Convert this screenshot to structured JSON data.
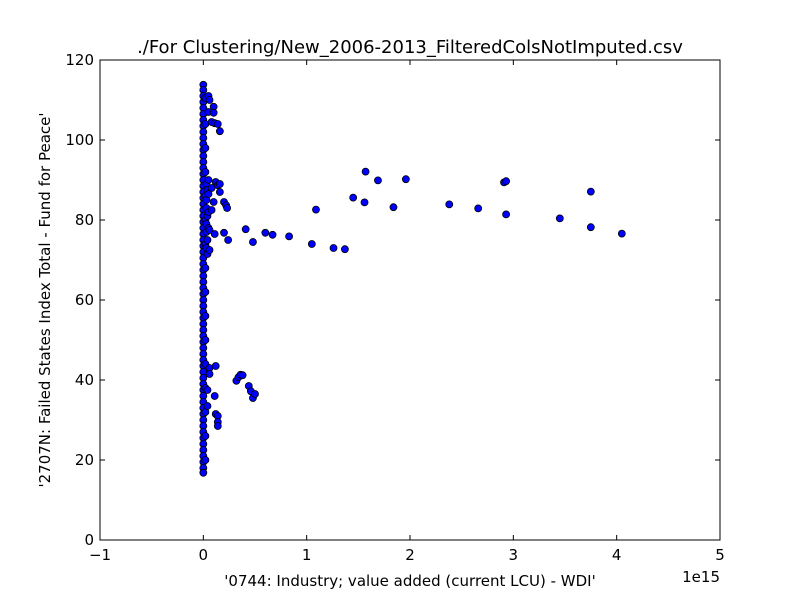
{
  "chart_data": {
    "type": "scatter",
    "title": "./For Clustering/New_2006-2013_FilteredColsNotImputed.csv",
    "xlabel": "'0744: Industry; value added  (current LCU) - WDI'",
    "ylabel": "'2707N: Failed States Index Total - Fund for Peace'",
    "x_offset_label": "1e15",
    "xlim": [
      -1,
      5
    ],
    "ylim": [
      0,
      120
    ],
    "x_ticks": [
      -1,
      0,
      1,
      2,
      3,
      4,
      5
    ],
    "x_tick_labels": [
      "−1",
      "0",
      "1",
      "2",
      "3",
      "4",
      "5"
    ],
    "y_ticks": [
      0,
      20,
      40,
      60,
      80,
      100,
      120
    ],
    "y_tick_labels": [
      "0",
      "20",
      "40",
      "60",
      "80",
      "100",
      "120"
    ],
    "grid": false,
    "marker_color": "#0000ff",
    "marker_edge_color": "#000000",
    "x_scale_note": "x values are in units of 1e15",
    "points": [
      [
        0.0,
        113.8
      ],
      [
        0.0,
        112.5
      ],
      [
        0.0,
        111.0
      ],
      [
        0.0,
        109.5
      ],
      [
        0.0,
        108.0
      ],
      [
        0.0,
        106.5
      ],
      [
        0.0,
        105.0
      ],
      [
        0.0,
        103.5
      ],
      [
        0.0,
        102.0
      ],
      [
        0.0,
        100.5
      ],
      [
        0.0,
        99.0
      ],
      [
        0.0,
        97.5
      ],
      [
        0.0,
        96.0
      ],
      [
        0.0,
        94.5
      ],
      [
        0.0,
        93.0
      ],
      [
        0.0,
        91.5
      ],
      [
        0.0,
        90.0
      ],
      [
        0.0,
        88.5
      ],
      [
        0.0,
        87.0
      ],
      [
        0.0,
        85.5
      ],
      [
        0.0,
        84.0
      ],
      [
        0.0,
        82.5
      ],
      [
        0.0,
        81.0
      ],
      [
        0.0,
        79.5
      ],
      [
        0.0,
        78.0
      ],
      [
        0.0,
        76.5
      ],
      [
        0.0,
        75.0
      ],
      [
        0.0,
        73.5
      ],
      [
        0.0,
        72.0
      ],
      [
        0.0,
        70.5
      ],
      [
        0.0,
        69.0
      ],
      [
        0.0,
        67.5
      ],
      [
        0.0,
        66.0
      ],
      [
        0.0,
        64.5
      ],
      [
        0.0,
        63.0
      ],
      [
        0.0,
        61.5
      ],
      [
        0.0,
        60.0
      ],
      [
        0.0,
        58.5
      ],
      [
        0.0,
        57.0
      ],
      [
        0.0,
        55.5
      ],
      [
        0.0,
        54.0
      ],
      [
        0.0,
        52.5
      ],
      [
        0.0,
        51.0
      ],
      [
        0.0,
        49.5
      ],
      [
        0.0,
        48.0
      ],
      [
        0.0,
        46.5
      ],
      [
        0.0,
        45.0
      ],
      [
        0.0,
        43.5
      ],
      [
        0.0,
        42.0
      ],
      [
        0.0,
        40.5
      ],
      [
        0.0,
        39.0
      ],
      [
        0.0,
        37.5
      ],
      [
        0.0,
        36.0
      ],
      [
        0.0,
        34.5
      ],
      [
        0.0,
        33.0
      ],
      [
        0.0,
        31.5
      ],
      [
        0.0,
        30.0
      ],
      [
        0.0,
        28.5
      ],
      [
        0.0,
        27.0
      ],
      [
        0.0,
        25.5
      ],
      [
        0.0,
        24.0
      ],
      [
        0.0,
        22.5
      ],
      [
        0.0,
        21.0
      ],
      [
        0.0,
        19.5
      ],
      [
        0.0,
        18.0
      ],
      [
        0.0,
        16.8
      ],
      [
        0.02,
        110.5
      ],
      [
        0.02,
        104.0
      ],
      [
        0.02,
        98.0
      ],
      [
        0.02,
        92.0
      ],
      [
        0.02,
        86.0
      ],
      [
        0.02,
        80.0
      ],
      [
        0.02,
        74.0
      ],
      [
        0.02,
        68.0
      ],
      [
        0.02,
        62.0
      ],
      [
        0.02,
        56.0
      ],
      [
        0.02,
        50.0
      ],
      [
        0.02,
        44.0
      ],
      [
        0.02,
        38.0
      ],
      [
        0.02,
        32.0
      ],
      [
        0.02,
        26.0
      ],
      [
        0.02,
        20.0
      ],
      [
        0.03,
        89.0
      ],
      [
        0.03,
        85.0
      ],
      [
        0.03,
        83.0
      ],
      [
        0.03,
        79.0
      ],
      [
        0.03,
        77.0
      ],
      [
        0.03,
        73.0
      ],
      [
        0.04,
        87.5
      ],
      [
        0.04,
        81.0
      ],
      [
        0.04,
        75.0
      ],
      [
        0.04,
        71.5
      ],
      [
        0.04,
        37.5
      ],
      [
        0.04,
        33.5
      ],
      [
        0.05,
        111.0
      ],
      [
        0.05,
        107.0
      ],
      [
        0.05,
        90.0
      ],
      [
        0.05,
        86.5
      ],
      [
        0.05,
        82.0
      ],
      [
        0.05,
        78.0
      ],
      [
        0.06,
        110.0
      ],
      [
        0.06,
        77.5
      ],
      [
        0.06,
        72.5
      ],
      [
        0.06,
        43.0
      ],
      [
        0.06,
        41.5
      ],
      [
        0.08,
        104.5
      ],
      [
        0.08,
        88.0
      ],
      [
        0.08,
        82.5
      ],
      [
        0.1,
        108.3
      ],
      [
        0.1,
        106.8
      ],
      [
        0.1,
        84.5
      ],
      [
        0.11,
        104.2
      ],
      [
        0.11,
        76.5
      ],
      [
        0.11,
        36.0
      ],
      [
        0.12,
        89.5
      ],
      [
        0.12,
        43.5
      ],
      [
        0.12,
        31.5
      ],
      [
        0.14,
        104.0
      ],
      [
        0.14,
        88.7
      ],
      [
        0.14,
        31.0
      ],
      [
        0.14,
        29.5
      ],
      [
        0.14,
        28.5
      ],
      [
        0.16,
        102.2
      ],
      [
        0.16,
        89.0
      ],
      [
        0.16,
        87.0
      ],
      [
        0.2,
        84.5
      ],
      [
        0.2,
        76.8
      ],
      [
        0.22,
        83.7
      ],
      [
        0.23,
        83.0
      ],
      [
        0.24,
        75.0
      ],
      [
        0.32,
        39.8
      ],
      [
        0.34,
        40.7
      ],
      [
        0.36,
        41.3
      ],
      [
        0.38,
        41.2
      ],
      [
        0.41,
        77.7
      ],
      [
        0.44,
        38.5
      ],
      [
        0.46,
        37.2
      ],
      [
        0.48,
        74.5
      ],
      [
        0.48,
        35.5
      ],
      [
        0.5,
        36.5
      ],
      [
        0.6,
        76.8
      ],
      [
        0.67,
        76.3
      ],
      [
        0.83,
        75.9
      ],
      [
        1.05,
        74.0
      ],
      [
        1.09,
        82.6
      ],
      [
        1.26,
        73.0
      ],
      [
        1.37,
        72.7
      ],
      [
        1.45,
        85.6
      ],
      [
        1.56,
        84.4
      ],
      [
        1.57,
        92.1
      ],
      [
        1.69,
        89.9
      ],
      [
        1.84,
        83.2
      ],
      [
        1.96,
        90.2
      ],
      [
        2.38,
        83.9
      ],
      [
        2.66,
        82.9
      ],
      [
        2.91,
        89.4
      ],
      [
        2.93,
        89.7
      ],
      [
        2.93,
        81.4
      ],
      [
        3.45,
        80.4
      ],
      [
        3.75,
        87.1
      ],
      [
        3.75,
        78.2
      ],
      [
        4.05,
        76.6
      ]
    ]
  }
}
